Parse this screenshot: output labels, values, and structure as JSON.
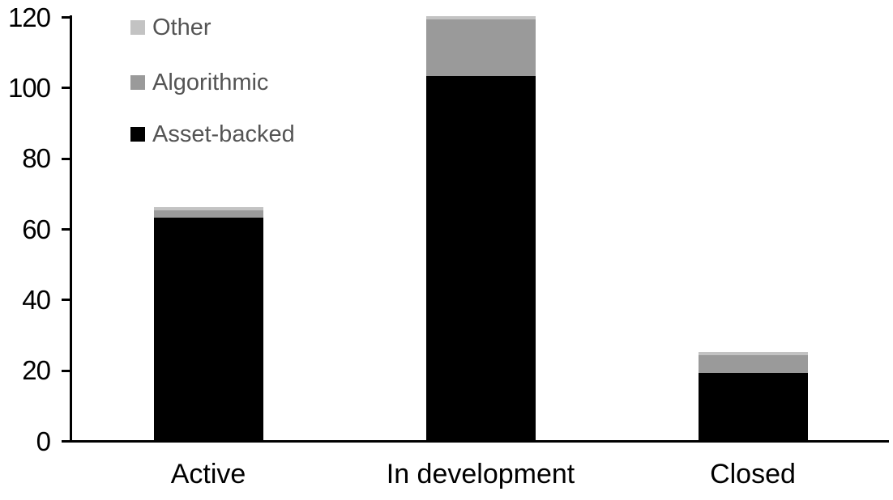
{
  "chart_data": {
    "type": "bar",
    "stacked": true,
    "title": "",
    "xlabel": "",
    "ylabel": "",
    "categories": [
      "Active",
      "In development",
      "Closed"
    ],
    "series": [
      {
        "name": "Asset-backed",
        "color": "#000000",
        "values": [
          63,
          103,
          19
        ]
      },
      {
        "name": "Algorithmic",
        "color": "#9a9a9a",
        "values": [
          2,
          16,
          5
        ]
      },
      {
        "name": "Other",
        "color": "#c3c3c3",
        "values": [
          1,
          1,
          1
        ]
      }
    ],
    "totals": [
      66,
      120,
      25
    ],
    "ylim": [
      0,
      120
    ],
    "yticks": [
      0,
      20,
      40,
      60,
      80,
      100,
      120
    ],
    "grid": false,
    "legend": {
      "position": "top-left",
      "order": [
        "Other",
        "Algorithmic",
        "Asset-backed"
      ]
    }
  },
  "colors": {
    "axis": "#000000",
    "tick_label_text": "#000000",
    "category_label_text": "#000000",
    "legend_text": "#545454",
    "background": "#ffffff"
  }
}
